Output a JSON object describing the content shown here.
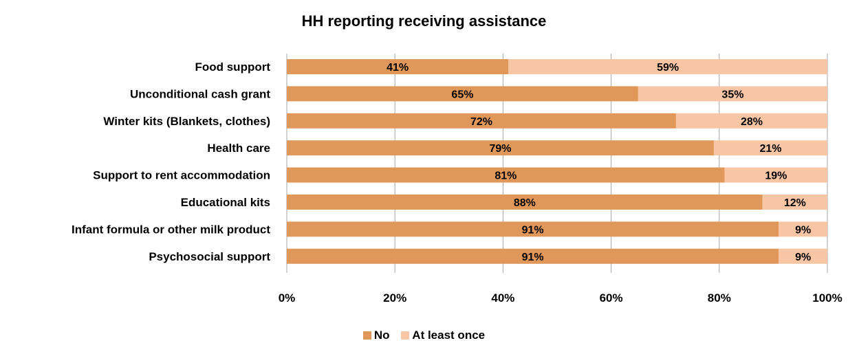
{
  "chart_data": {
    "type": "bar",
    "orientation": "horizontal",
    "stacked": true,
    "title": "HH reporting receiving assistance",
    "categories": [
      "Food support",
      "Unconditional cash grant",
      "Winter kits (Blankets, clothes)",
      "Health care",
      "Support to rent accommodation",
      "Educational kits",
      "Infant formula or other milk product",
      "Psychosocial support"
    ],
    "series": [
      {
        "name": "No",
        "values": [
          41,
          65,
          72,
          79,
          81,
          88,
          91,
          91
        ],
        "color": "#E0985A"
      },
      {
        "name": "At least once",
        "values": [
          59,
          35,
          28,
          21,
          19,
          12,
          9,
          9
        ],
        "color": "#F8C5A5"
      }
    ],
    "data_labels": [
      [
        "41%",
        "65%",
        "72%",
        "79%",
        "81%",
        "88%",
        "91%",
        "91%"
      ],
      [
        "59%",
        "35%",
        "28%",
        "21%",
        "19%",
        "12%",
        "9%",
        "9%"
      ]
    ],
    "xlim": [
      0,
      100
    ],
    "xticks": [
      "0%",
      "20%",
      "40%",
      "60%",
      "80%",
      "100%"
    ],
    "grid": true,
    "legend_position": "bottom"
  }
}
